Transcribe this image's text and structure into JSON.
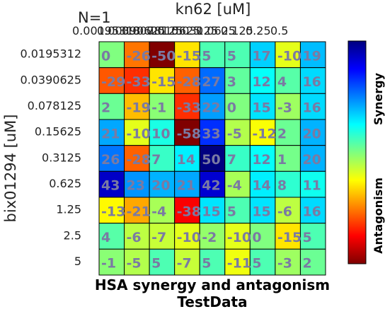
{
  "chart_data": {
    "type": "heatmap",
    "title": "HSA synergy and antagonism",
    "subtitle": "TestData",
    "corner_label": "N=1",
    "xlabel": "kn62 [uM]",
    "ylabel": "bix01294 [uM]",
    "x_ticks": [
      "0.00195313",
      "0.00390625",
      "0.0078125",
      "0.015625",
      "0.03125",
      "0.0625",
      "0.125",
      "0.25",
      "0.5"
    ],
    "y_ticks": [
      "0.0195312",
      "0.0390625",
      "0.078125",
      "0.15625",
      "0.3125",
      "0.625",
      "1.25",
      "2.5",
      "5"
    ],
    "values": [
      [
        0,
        -26,
        -50,
        -15,
        5,
        5,
        17,
        -10,
        19
      ],
      [
        -29,
        -33,
        -15,
        -28,
        27,
        3,
        12,
        4,
        16
      ],
      [
        2,
        -19,
        -1,
        -33,
        22,
        0,
        15,
        -3,
        16
      ],
      [
        21,
        -10,
        10,
        -58,
        33,
        -5,
        -12,
        2,
        20
      ],
      [
        26,
        -28,
        7,
        14,
        50,
        7,
        12,
        1,
        20
      ],
      [
        43,
        23,
        20,
        21,
        42,
        -4,
        14,
        8,
        11
      ],
      [
        -13,
        -21,
        -4,
        -38,
        15,
        5,
        15,
        -6,
        16
      ],
      [
        4,
        -6,
        -7,
        -10,
        -2,
        -10,
        0,
        -15,
        5
      ],
      [
        -1,
        -5,
        5,
        -7,
        5,
        -11,
        5,
        -3,
        2
      ]
    ],
    "colorbar": {
      "labels": [
        "Synergy",
        "Antagonism"
      ],
      "range": [
        -50,
        50
      ],
      "colormap": "jet"
    },
    "grid": true
  }
}
